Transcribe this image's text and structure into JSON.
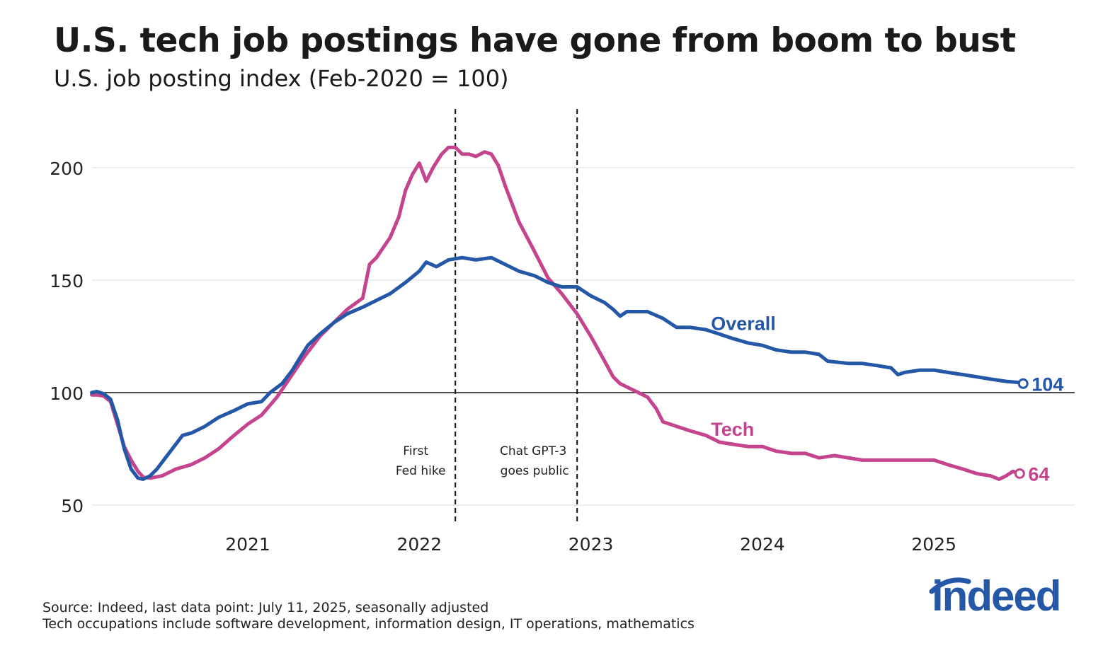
{
  "title": "U.S. tech job postings have gone from boom to bust",
  "subtitle": "U.S. job posting index (Feb-2020 = 100)",
  "notes": {
    "source": "Source: Indeed, last data point: July 11, 2025, seasonally adjusted",
    "definition": "Tech occupations include software development, information design, IT operations, mathematics"
  },
  "logo": {
    "text": "indeed",
    "color": "#2557a7"
  },
  "chart_data": {
    "type": "line",
    "ylim": [
      45,
      220
    ],
    "xlim": [
      2020.09,
      2025.8
    ],
    "yticks": [
      50,
      100,
      150,
      200
    ],
    "ytick_labels": [
      "50",
      "100",
      "150",
      "200"
    ],
    "xticks": [
      2021,
      2022,
      2023,
      2024,
      2025
    ],
    "xtick_labels": [
      "2021",
      "2022",
      "2023",
      "2024",
      "2025"
    ],
    "grid": true,
    "baseline": 100,
    "events": [
      {
        "x": 2022.21,
        "label_line1": "First",
        "label_line2": "Fed hike",
        "label_side": "left"
      },
      {
        "x": 2022.92,
        "label_line1": "Chat GPT-3",
        "label_line2": "goes public",
        "label_side": "left"
      }
    ],
    "series": [
      {
        "name": "Overall",
        "color": "#2557a7",
        "end_label": "104",
        "points": [
          [
            2020.09,
            100
          ],
          [
            2020.12,
            100.5
          ],
          [
            2020.16,
            99.5
          ],
          [
            2020.2,
            97
          ],
          [
            2020.24,
            88
          ],
          [
            2020.28,
            75
          ],
          [
            2020.32,
            66
          ],
          [
            2020.36,
            62
          ],
          [
            2020.39,
            61.5
          ],
          [
            2020.43,
            63
          ],
          [
            2020.47,
            66
          ],
          [
            2020.52,
            71
          ],
          [
            2020.57,
            76
          ],
          [
            2020.62,
            81
          ],
          [
            2020.67,
            82
          ],
          [
            2020.75,
            85
          ],
          [
            2020.83,
            89
          ],
          [
            2020.92,
            92
          ],
          [
            2021.0,
            95
          ],
          [
            2021.08,
            96
          ],
          [
            2021.13,
            100
          ],
          [
            2021.2,
            104
          ],
          [
            2021.26,
            110
          ],
          [
            2021.3,
            115
          ],
          [
            2021.35,
            121
          ],
          [
            2021.42,
            126
          ],
          [
            2021.5,
            131
          ],
          [
            2021.58,
            135
          ],
          [
            2021.67,
            138
          ],
          [
            2021.75,
            141
          ],
          [
            2021.83,
            144
          ],
          [
            2021.92,
            149
          ],
          [
            2022.0,
            154
          ],
          [
            2022.04,
            158
          ],
          [
            2022.1,
            156
          ],
          [
            2022.17,
            159
          ],
          [
            2022.25,
            160
          ],
          [
            2022.33,
            159
          ],
          [
            2022.42,
            160
          ],
          [
            2022.5,
            157
          ],
          [
            2022.58,
            154
          ],
          [
            2022.67,
            152
          ],
          [
            2022.75,
            149
          ],
          [
            2022.83,
            147
          ],
          [
            2022.92,
            147
          ],
          [
            2023.0,
            143
          ],
          [
            2023.08,
            140
          ],
          [
            2023.13,
            137
          ],
          [
            2023.17,
            134
          ],
          [
            2023.21,
            136
          ],
          [
            2023.25,
            136
          ],
          [
            2023.33,
            136
          ],
          [
            2023.42,
            133
          ],
          [
            2023.5,
            129
          ],
          [
            2023.58,
            129
          ],
          [
            2023.67,
            128
          ],
          [
            2023.75,
            126
          ],
          [
            2023.83,
            124
          ],
          [
            2023.92,
            122
          ],
          [
            2024.0,
            121
          ],
          [
            2024.08,
            119
          ],
          [
            2024.17,
            118
          ],
          [
            2024.25,
            118
          ],
          [
            2024.33,
            117
          ],
          [
            2024.38,
            114
          ],
          [
            2024.5,
            113
          ],
          [
            2024.58,
            113
          ],
          [
            2024.67,
            112
          ],
          [
            2024.75,
            111
          ],
          [
            2024.79,
            108
          ],
          [
            2024.83,
            109
          ],
          [
            2024.92,
            110
          ],
          [
            2025.0,
            110
          ],
          [
            2025.08,
            109
          ],
          [
            2025.17,
            108
          ],
          [
            2025.25,
            107
          ],
          [
            2025.33,
            106
          ],
          [
            2025.42,
            105
          ],
          [
            2025.5,
            104.5
          ],
          [
            2025.52,
            104
          ]
        ]
      },
      {
        "name": "Tech",
        "color": "#c4448e",
        "end_label": "64",
        "points": [
          [
            2020.09,
            99
          ],
          [
            2020.12,
            99
          ],
          [
            2020.16,
            98.5
          ],
          [
            2020.2,
            96
          ],
          [
            2020.24,
            86
          ],
          [
            2020.28,
            76
          ],
          [
            2020.32,
            70
          ],
          [
            2020.36,
            65
          ],
          [
            2020.39,
            62.5
          ],
          [
            2020.43,
            62
          ],
          [
            2020.5,
            63
          ],
          [
            2020.58,
            66
          ],
          [
            2020.67,
            68
          ],
          [
            2020.75,
            71
          ],
          [
            2020.83,
            75
          ],
          [
            2020.92,
            81
          ],
          [
            2021.0,
            86
          ],
          [
            2021.08,
            90
          ],
          [
            2021.17,
            98
          ],
          [
            2021.25,
            107
          ],
          [
            2021.33,
            116
          ],
          [
            2021.42,
            125
          ],
          [
            2021.5,
            131
          ],
          [
            2021.58,
            137
          ],
          [
            2021.67,
            142
          ],
          [
            2021.71,
            157
          ],
          [
            2021.75,
            160
          ],
          [
            2021.83,
            169
          ],
          [
            2021.88,
            178
          ],
          [
            2021.92,
            190
          ],
          [
            2021.96,
            197
          ],
          [
            2022.0,
            202
          ],
          [
            2022.04,
            194
          ],
          [
            2022.08,
            200
          ],
          [
            2022.13,
            206
          ],
          [
            2022.17,
            209
          ],
          [
            2022.21,
            209
          ],
          [
            2022.25,
            206
          ],
          [
            2022.29,
            206
          ],
          [
            2022.33,
            205
          ],
          [
            2022.38,
            207
          ],
          [
            2022.42,
            206
          ],
          [
            2022.46,
            201
          ],
          [
            2022.5,
            192
          ],
          [
            2022.58,
            176
          ],
          [
            2022.67,
            163
          ],
          [
            2022.75,
            151
          ],
          [
            2022.83,
            144
          ],
          [
            2022.92,
            135
          ],
          [
            2023.0,
            125
          ],
          [
            2023.08,
            114
          ],
          [
            2023.13,
            107
          ],
          [
            2023.17,
            104
          ],
          [
            2023.25,
            101
          ],
          [
            2023.33,
            98
          ],
          [
            2023.38,
            93
          ],
          [
            2023.42,
            87
          ],
          [
            2023.5,
            85
          ],
          [
            2023.58,
            83
          ],
          [
            2023.67,
            81
          ],
          [
            2023.75,
            78
          ],
          [
            2023.83,
            77
          ],
          [
            2023.92,
            76
          ],
          [
            2024.0,
            76
          ],
          [
            2024.08,
            74
          ],
          [
            2024.17,
            73
          ],
          [
            2024.25,
            73
          ],
          [
            2024.33,
            71
          ],
          [
            2024.42,
            72
          ],
          [
            2024.5,
            71
          ],
          [
            2024.58,
            70
          ],
          [
            2024.67,
            70
          ],
          [
            2024.75,
            70
          ],
          [
            2024.83,
            70
          ],
          [
            2024.92,
            70
          ],
          [
            2025.0,
            70
          ],
          [
            2025.08,
            68
          ],
          [
            2025.17,
            66
          ],
          [
            2025.25,
            64
          ],
          [
            2025.33,
            63
          ],
          [
            2025.38,
            61.5
          ],
          [
            2025.42,
            63
          ],
          [
            2025.46,
            65
          ],
          [
            2025.5,
            64
          ]
        ]
      }
    ],
    "series_labels": [
      {
        "series": "Overall",
        "text": "Overall",
        "x": 2023.7,
        "y": 131
      },
      {
        "series": "Tech",
        "text": "Tech",
        "x": 2023.7,
        "y": 84
      }
    ]
  }
}
